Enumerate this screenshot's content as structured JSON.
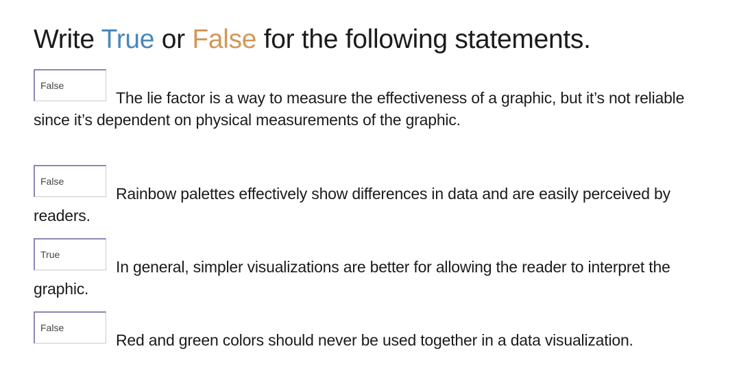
{
  "heading": {
    "part1": "Write ",
    "word_true": "True",
    "part2": " or ",
    "word_false": "False",
    "part3": " for the following statements."
  },
  "colors": {
    "true_word": "#4a87b9",
    "false_word": "#d29758",
    "text": "#1b1b1b",
    "box_border": "#8a86b8"
  },
  "questions": [
    {
      "answer": "False",
      "text": "The lie factor is a way to measure the effectiveness of a graphic, but it’s not reliable since it’s dependent on physical measurements of the graphic."
    },
    {
      "answer": "False",
      "text": "Rainbow palettes effectively show differences in data and are easily perceived by readers."
    },
    {
      "answer": "True",
      "text": "In general, simpler visualizations are better for allowing the reader to interpret the graphic."
    },
    {
      "answer": "False",
      "text": "Red and green colors should never be used together in a data visualization."
    }
  ]
}
